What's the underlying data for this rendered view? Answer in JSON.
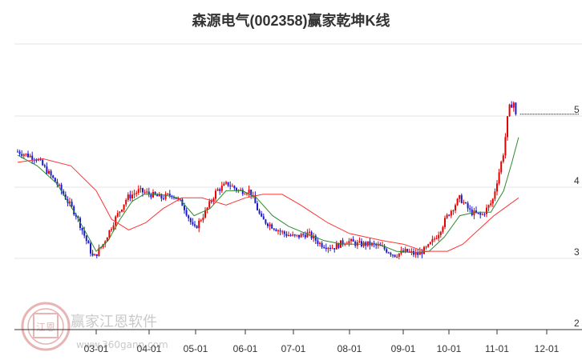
{
  "page_title": "森源电气(002358)赢家乾坤K线",
  "watermark": {
    "brand": "赢家江恩软件",
    "url": "www.360gann.com",
    "seal_text": "江恩"
  },
  "colors": {
    "up": "#e60000",
    "down": "#1a1acc",
    "ma_short": "#2e8b2e",
    "ma_long": "#ff3333",
    "grid": "#e6e6e6",
    "axis": "#333333",
    "seal": "#e8b4b4"
  },
  "chart_data": {
    "type": "candlestick",
    "title": "森源电气(002358)赢家乾坤K线",
    "x_ticks": [
      "03-01",
      "04-01",
      "05-01",
      "06-01",
      "07-01",
      "08-01",
      "09-01",
      "10-01",
      "11-01",
      "12-01"
    ],
    "y_ticks": [
      "5",
      "4",
      "3",
      "2"
    ],
    "ylim": [
      2,
      5.7
    ],
    "grid": true,
    "series": [
      {
        "type": "candlestick",
        "segments": [
          [
            "02-01",
            4.5
          ],
          [
            "02-08",
            4.4
          ],
          [
            "02-15",
            4.05
          ],
          [
            "02-22",
            3.6
          ],
          [
            "02-28",
            3.0
          ],
          [
            "03-05",
            3.2
          ],
          [
            "03-12",
            3.55
          ],
          [
            "03-19",
            3.85
          ],
          [
            "03-26",
            3.95
          ],
          [
            "04-02",
            3.9
          ],
          [
            "04-09",
            3.85
          ],
          [
            "04-16",
            3.9
          ],
          [
            "04-23",
            3.75
          ],
          [
            "04-30",
            3.4
          ],
          [
            "05-07",
            3.65
          ],
          [
            "05-14",
            3.95
          ],
          [
            "05-21",
            4.05
          ],
          [
            "05-28",
            3.95
          ],
          [
            "06-04",
            3.95
          ],
          [
            "06-11",
            3.55
          ],
          [
            "06-18",
            3.45
          ],
          [
            "06-25",
            3.35
          ],
          [
            "07-02",
            3.3
          ],
          [
            "07-09",
            3.35
          ],
          [
            "07-16",
            3.2
          ],
          [
            "07-23",
            3.15
          ],
          [
            "07-30",
            3.25
          ],
          [
            "08-06",
            3.2
          ],
          [
            "08-13",
            3.2
          ],
          [
            "08-20",
            3.15
          ],
          [
            "08-27",
            3.05
          ],
          [
            "09-03",
            3.1
          ],
          [
            "09-10",
            3.05
          ],
          [
            "09-17",
            3.15
          ],
          [
            "09-24",
            3.35
          ],
          [
            "09-30",
            3.6
          ],
          [
            "10-08",
            3.85
          ],
          [
            "10-15",
            3.65
          ],
          [
            "10-22",
            3.6
          ],
          [
            "10-29",
            3.8
          ],
          [
            "11-05",
            4.5
          ],
          [
            "11-08",
            5.1
          ],
          [
            "11-11",
            5.2
          ],
          [
            "11-13",
            4.9
          ]
        ]
      },
      {
        "name": "",
        "type": "line",
        "color_key": "ma_short",
        "points": [
          [
            "02-01",
            4.45
          ],
          [
            "02-08",
            4.3
          ],
          [
            "02-15",
            4.05
          ],
          [
            "02-22",
            3.6
          ],
          [
            "03-01",
            3.1
          ],
          [
            "03-08",
            3.25
          ],
          [
            "03-15",
            3.55
          ],
          [
            "03-22",
            3.8
          ],
          [
            "03-29",
            3.9
          ],
          [
            "04-08",
            3.9
          ],
          [
            "04-20",
            3.85
          ],
          [
            "04-30",
            3.6
          ],
          [
            "05-10",
            3.7
          ],
          [
            "05-20",
            3.95
          ],
          [
            "05-30",
            3.95
          ],
          [
            "06-08",
            3.85
          ],
          [
            "06-18",
            3.6
          ],
          [
            "06-28",
            3.45
          ],
          [
            "07-08",
            3.35
          ],
          [
            "07-18",
            3.25
          ],
          [
            "07-28",
            3.2
          ],
          [
            "08-08",
            3.2
          ],
          [
            "08-18",
            3.2
          ],
          [
            "08-28",
            3.1
          ],
          [
            "09-08",
            3.08
          ],
          [
            "09-18",
            3.1
          ],
          [
            "09-28",
            3.3
          ],
          [
            "10-08",
            3.6
          ],
          [
            "10-18",
            3.65
          ],
          [
            "10-28",
            3.65
          ],
          [
            "11-05",
            3.95
          ],
          [
            "11-10",
            4.35
          ],
          [
            "11-14",
            4.7
          ]
        ]
      },
      {
        "name": "",
        "type": "line",
        "color_key": "ma_long",
        "points": [
          [
            "02-01",
            4.35
          ],
          [
            "02-10",
            4.4
          ],
          [
            "02-20",
            4.3
          ],
          [
            "03-01",
            3.95
          ],
          [
            "03-10",
            3.55
          ],
          [
            "03-20",
            3.4
          ],
          [
            "03-30",
            3.5
          ],
          [
            "04-10",
            3.7
          ],
          [
            "04-22",
            3.85
          ],
          [
            "05-05",
            3.85
          ],
          [
            "05-20",
            3.75
          ],
          [
            "06-01",
            3.85
          ],
          [
            "06-12",
            3.9
          ],
          [
            "06-24",
            3.9
          ],
          [
            "07-05",
            3.75
          ],
          [
            "07-20",
            3.5
          ],
          [
            "08-01",
            3.35
          ],
          [
            "08-20",
            3.25
          ],
          [
            "09-01",
            3.2
          ],
          [
            "09-15",
            3.1
          ],
          [
            "09-30",
            3.1
          ],
          [
            "10-10",
            3.2
          ],
          [
            "10-20",
            3.4
          ],
          [
            "10-30",
            3.6
          ],
          [
            "11-08",
            3.75
          ],
          [
            "11-14",
            3.85
          ]
        ]
      }
    ]
  }
}
